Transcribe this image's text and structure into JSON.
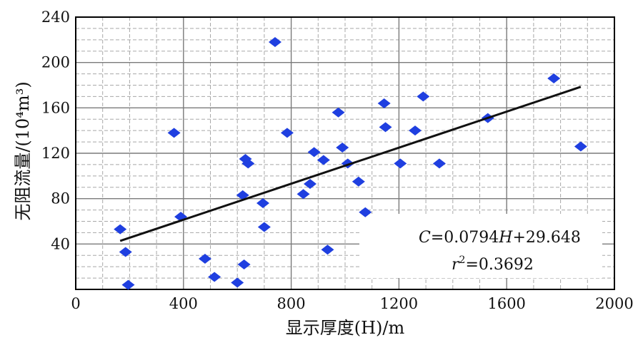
{
  "chart_data": {
    "type": "scatter",
    "title": "",
    "xlabel": "显示厚度(H)/m",
    "ylabel": "无阻流量/(10⁴m³)",
    "xlim": [
      0,
      2000
    ],
    "ylim": [
      0,
      240
    ],
    "x_ticks": [
      0,
      400,
      800,
      1200,
      1600,
      2000
    ],
    "y_ticks": [
      40,
      80,
      120,
      160,
      200,
      240
    ],
    "x_ticks_text": [
      "0",
      "400",
      "800",
      "1200",
      "1600",
      "2000"
    ],
    "y_ticks_text": [
      "40",
      "80",
      "120",
      "160",
      "200",
      "240"
    ],
    "grid": true,
    "marker_color": "#1f3fe0",
    "series": [
      {
        "points": [
          [
            165,
            53
          ],
          [
            185,
            33
          ],
          [
            195,
            4
          ],
          [
            365,
            138
          ],
          [
            390,
            64
          ],
          [
            480,
            27
          ],
          [
            515,
            11
          ],
          [
            600,
            6
          ],
          [
            620,
            83
          ],
          [
            625,
            22
          ],
          [
            630,
            115
          ],
          [
            640,
            111
          ],
          [
            695,
            76
          ],
          [
            700,
            55
          ],
          [
            740,
            218
          ],
          [
            785,
            138
          ],
          [
            845,
            84
          ],
          [
            870,
            93
          ],
          [
            885,
            121
          ],
          [
            920,
            114
          ],
          [
            935,
            35
          ],
          [
            975,
            156
          ],
          [
            990,
            125
          ],
          [
            1010,
            111
          ],
          [
            1050,
            95
          ],
          [
            1075,
            68
          ],
          [
            1145,
            164
          ],
          [
            1150,
            143
          ],
          [
            1205,
            111
          ],
          [
            1260,
            140
          ],
          [
            1290,
            170
          ],
          [
            1350,
            111
          ],
          [
            1530,
            151
          ],
          [
            1775,
            186
          ],
          [
            1875,
            126
          ]
        ]
      }
    ],
    "fit_line": {
      "x": [
        165,
        1875
      ],
      "slope": 0.0794,
      "intercept": 29.648,
      "color": "#111111"
    },
    "annotation": {
      "eq_var_c": "C",
      "eq_mid": "=0.0794",
      "eq_var_h": "H",
      "eq_end": "+29.648",
      "r_var": "r",
      "r_sup": "2",
      "r_end": "=0.3692"
    }
  }
}
